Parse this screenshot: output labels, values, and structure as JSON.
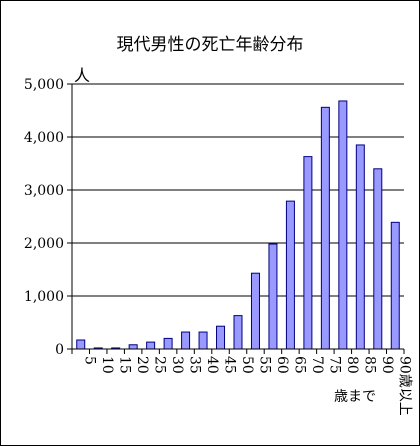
{
  "chart_data": {
    "type": "bar",
    "title": "現代男性の死亡年齢分布",
    "ylabel": "人",
    "xlabel": "",
    "x_unit_label": "歳まで",
    "categories": [
      "5",
      "10",
      "15",
      "20",
      "25",
      "30",
      "35",
      "40",
      "45",
      "50",
      "55",
      "60",
      "65",
      "70",
      "75",
      "80",
      "85",
      "90",
      "90歳以上"
    ],
    "values": [
      170,
      20,
      20,
      80,
      130,
      200,
      320,
      320,
      430,
      630,
      1430,
      1980,
      2790,
      3630,
      4560,
      4680,
      3850,
      3400,
      2390
    ],
    "ylim": [
      0,
      5000
    ],
    "yticks": [
      0,
      1000,
      2000,
      3000,
      4000,
      5000
    ],
    "ytick_labels": [
      "0",
      "1,000",
      "2,000",
      "3,000",
      "4,000",
      "5,000"
    ],
    "grid": true,
    "legend": "none",
    "colors": {
      "bar_fill": "#9999ff",
      "bar_stroke": "#000080",
      "grid": "#000000"
    }
  }
}
